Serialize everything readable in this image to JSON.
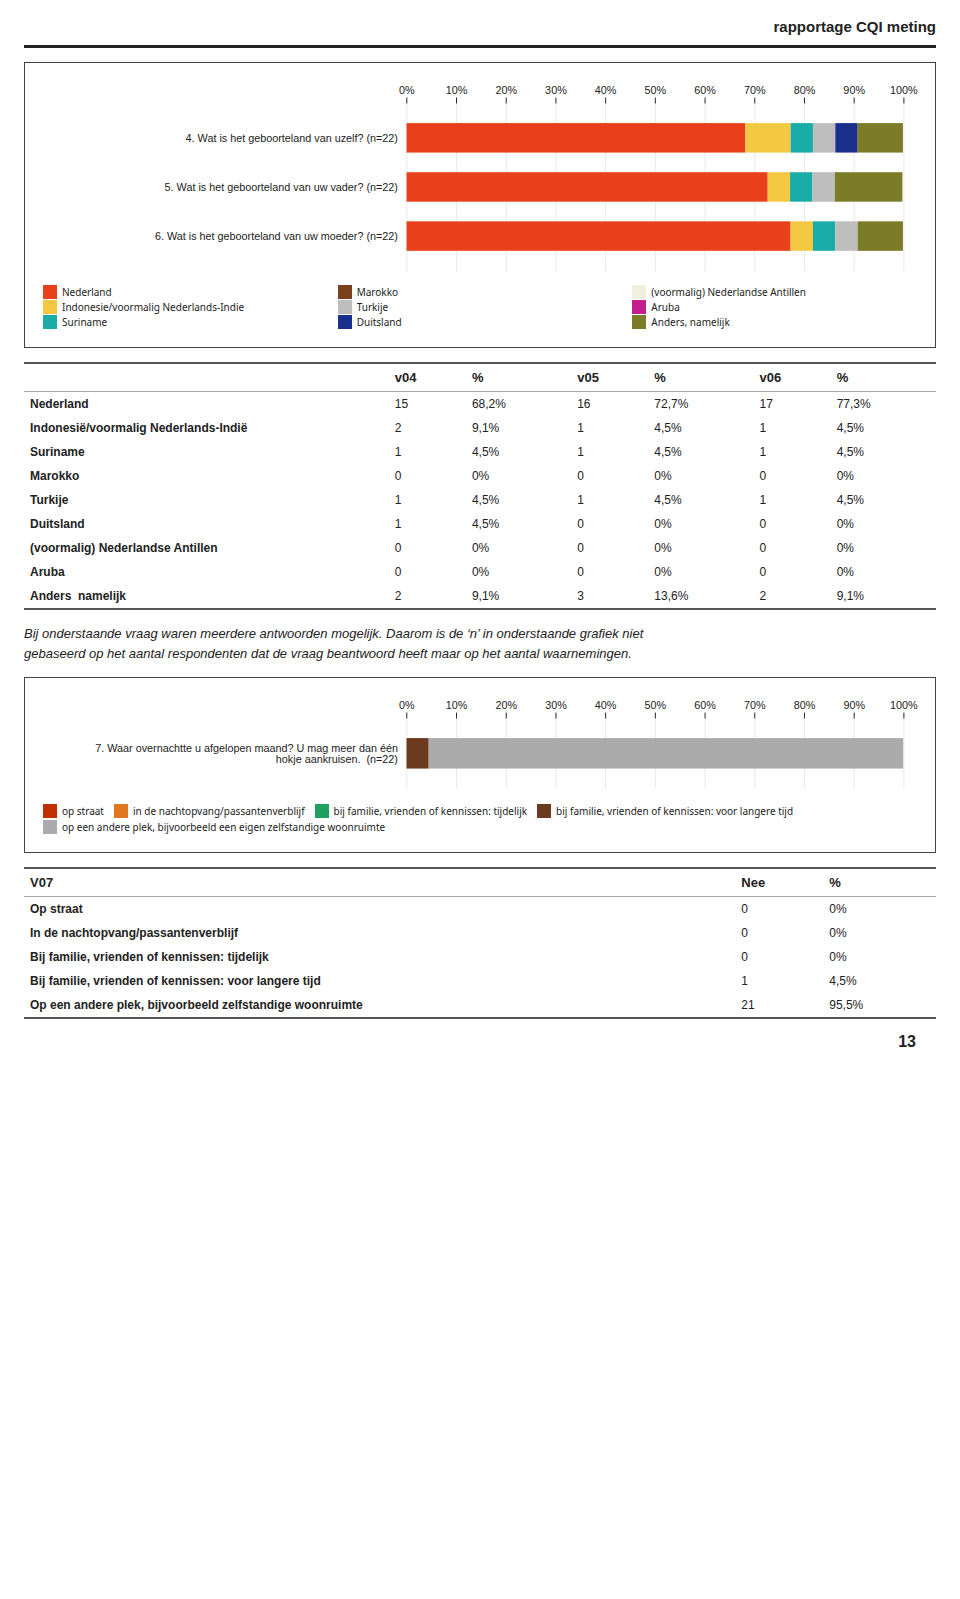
{
  "header": "rapportage CQI meting",
  "chart_data": [
    {
      "type": "bar",
      "orientation": "horizontal",
      "stacked": true,
      "categories": [
        "4. Wat is het geboorteland van uzelf? (n=22)",
        "5. Wat is het geboorteland van uw vader? (n=22)",
        "6. Wat is het geboorteland van uw moeder? (n=22)"
      ],
      "series": [
        {
          "name": "Nederland",
          "color": "#E8401A",
          "values": [
            68.2,
            72.7,
            77.3
          ]
        },
        {
          "name": "Indonesie/voormalig Nederlands-Indie",
          "color": "#F5C842",
          "values": [
            9.1,
            4.5,
            4.5
          ]
        },
        {
          "name": "Suriname",
          "color": "#1AADA8",
          "values": [
            4.5,
            4.5,
            4.5
          ]
        },
        {
          "name": "Marokko",
          "color": "#7B3F1E",
          "values": [
            0.0,
            0.0,
            0.0
          ]
        },
        {
          "name": "Turkije",
          "color": "#BEBEBE",
          "values": [
            4.5,
            4.5,
            4.5
          ]
        },
        {
          "name": "Duitsland",
          "color": "#1A2F8C",
          "values": [
            4.5,
            0.0,
            0.0
          ]
        },
        {
          "name": "(voormalig) Nederlandse Antillen",
          "color": "#F0F0DC",
          "values": [
            0.0,
            0.0,
            0.0
          ]
        },
        {
          "name": "Aruba",
          "color": "#C41E8C",
          "values": [
            0.0,
            0.0,
            0.0
          ]
        },
        {
          "name": "Anders, namelijk",
          "color": "#7B7B28",
          "values": [
            9.1,
            13.6,
            9.1
          ]
        }
      ],
      "xlim": [
        0,
        100
      ],
      "xticks": [
        {
          "value": 0,
          "label": "0%"
        },
        {
          "value": 10,
          "label": "10%"
        },
        {
          "value": 20,
          "label": "20%"
        },
        {
          "value": 30,
          "label": "30%"
        },
        {
          "value": 40,
          "label": "40%"
        },
        {
          "value": 50,
          "label": "50%"
        },
        {
          "value": 60,
          "label": "60%"
        },
        {
          "value": 70,
          "label": "70%"
        },
        {
          "value": 80,
          "label": "80%"
        },
        {
          "value": 90,
          "label": "90%"
        },
        {
          "value": 100,
          "label": "100%"
        }
      ],
      "grid": true,
      "legend": "bottom"
    },
    {
      "type": "bar",
      "orientation": "horizontal",
      "stacked": true,
      "categories": [
        "7. Waar overnachtte u afgelopen maand? U mag meer dan één\nhokje aankruisen.  (n=22)"
      ],
      "series": [
        {
          "name": "op straat",
          "color": "#C03000",
          "values": [
            0.0
          ]
        },
        {
          "name": "in de nachtopvang/passantenverblijf",
          "color": "#E07820",
          "values": [
            0.0
          ]
        },
        {
          "name": "bij familie, vrienden of kennissen: tijdelijk",
          "color": "#20A060",
          "values": [
            0.0
          ]
        },
        {
          "name": "bij familie, vrienden of kennissen: voor langere tijd",
          "color": "#6B3A1E",
          "values": [
            4.5
          ]
        },
        {
          "name": "op een andere plek, bijvoorbeeld een eigen zelfstandige woonruimte",
          "color": "#ABABAB",
          "values": [
            95.5
          ]
        }
      ],
      "xlim": [
        0,
        100
      ],
      "xticks": [
        {
          "value": 0,
          "label": "0%"
        },
        {
          "value": 10,
          "label": "10%"
        },
        {
          "value": 20,
          "label": "20%"
        },
        {
          "value": 30,
          "label": "30%"
        },
        {
          "value": 40,
          "label": "40%"
        },
        {
          "value": 50,
          "label": "50%"
        },
        {
          "value": 60,
          "label": "60%"
        },
        {
          "value": 70,
          "label": "70%"
        },
        {
          "value": 80,
          "label": "80%"
        },
        {
          "value": 90,
          "label": "90%"
        },
        {
          "value": 100,
          "label": "100%"
        }
      ],
      "grid": true,
      "legend": "bottom"
    }
  ],
  "tables": [
    {
      "columns": [
        "v04",
        "%",
        "v05",
        "%",
        "v06",
        "%"
      ],
      "rows": [
        [
          "Nederland",
          "15",
          "68,2%",
          "16",
          "72,7%",
          "17",
          "77,3%"
        ],
        [
          "Indonesië/voormalig Nederlands-Indië",
          "2",
          "9,1%",
          "1",
          "4,5%",
          "1",
          "4,5%"
        ],
        [
          "Suriname",
          "1",
          "4,5%",
          "1",
          "4,5%",
          "1",
          "4,5%"
        ],
        [
          "Marokko",
          "0",
          "0%",
          "0",
          "0%",
          "0",
          "0%"
        ],
        [
          "Turkije",
          "1",
          "4,5%",
          "1",
          "4,5%",
          "1",
          "4,5%"
        ],
        [
          "Duitsland",
          "1",
          "4,5%",
          "0",
          "0%",
          "0",
          "0%"
        ],
        [
          "(voormalig) Nederlandse Antillen",
          "0",
          "0%",
          "0",
          "0%",
          "0",
          "0%"
        ],
        [
          "Aruba",
          "0",
          "0%",
          "0",
          "0%",
          "0",
          "0%"
        ],
        [
          "Anders  namelijk",
          "2",
          "9,1%",
          "3",
          "13,6%",
          "2",
          "9,1%"
        ]
      ]
    },
    {
      "title": "V07",
      "columns": [
        "Nee",
        "%"
      ],
      "rows": [
        [
          "Op straat",
          "0",
          "0%"
        ],
        [
          "In de nachtopvang/passantenverblijf",
          "0",
          "0%"
        ],
        [
          "Bij familie, vrienden of kennissen: tijdelijk",
          "0",
          "0%"
        ],
        [
          "Bij familie, vrienden of kennissen: voor langere tijd",
          "1",
          "4,5%"
        ],
        [
          "Op een andere plek, bijvoorbeeld zelfstandige woonruimte",
          "21",
          "95,5%"
        ]
      ]
    }
  ],
  "note": [
    "Bij onderstaande vraag waren meerdere antwoorden mogelijk. Daarom is de ‘n’ in onderstaande grafiek niet",
    "gebaseerd op het aantal respondenten dat de vraag beantwoord heeft maar op het aantal waarnemingen."
  ],
  "page_number": "13"
}
